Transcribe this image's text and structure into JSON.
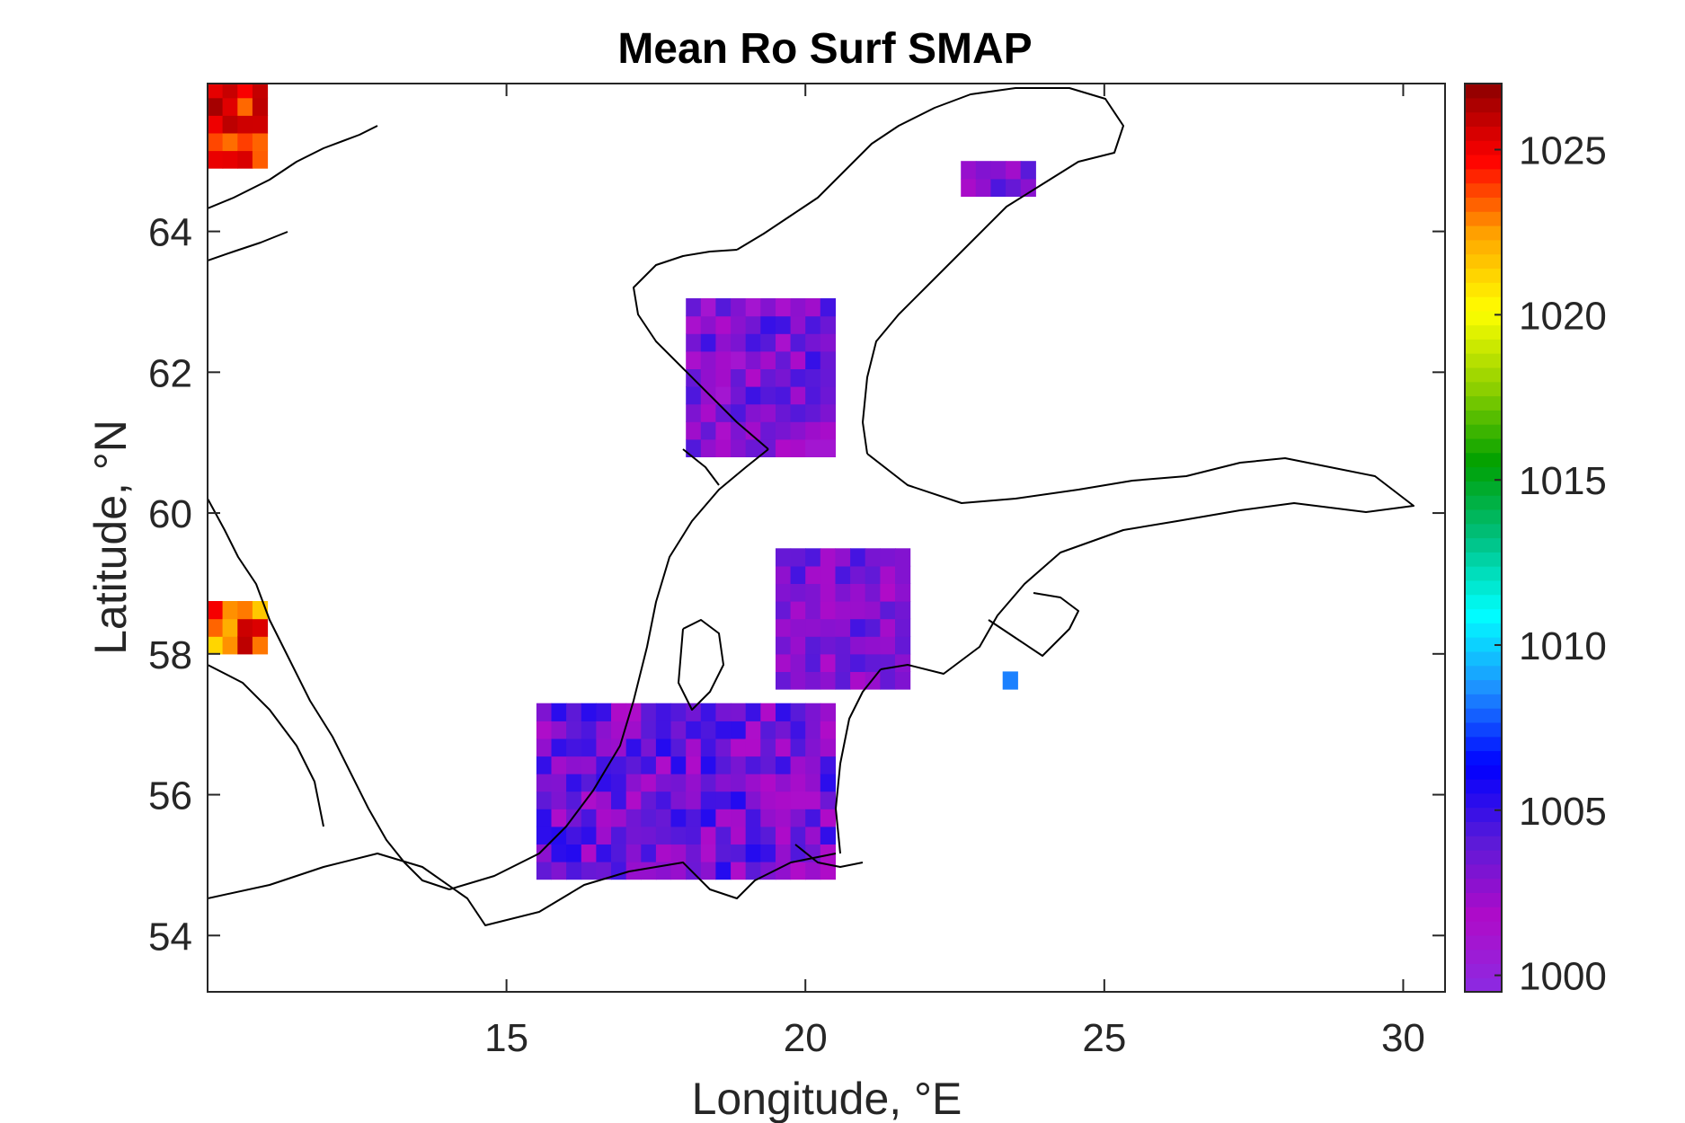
{
  "chart_data": {
    "type": "heatmap",
    "title": "Mean Ro Surf SMAP",
    "xlabel": "Longitude, °E",
    "ylabel": "Latitude, °N",
    "xlim": [
      10,
      30.7
    ],
    "ylim": [
      53.2,
      66.1
    ],
    "xticks": [
      15,
      20,
      25,
      30
    ],
    "xticklabels": [
      "15",
      "20",
      "25",
      "30"
    ],
    "yticks": [
      54,
      56,
      58,
      60,
      62,
      64
    ],
    "yticklabels": [
      "54",
      "56",
      "58",
      "60",
      "62",
      "64"
    ],
    "colorbar": {
      "clim": [
        999.5,
        1027.0
      ],
      "ticks": [
        1000,
        1005,
        1010,
        1015,
        1020,
        1025
      ],
      "ticklabels": [
        "1000",
        "1005",
        "1010",
        "1015",
        "1020",
        "1025"
      ],
      "colormap": [
        "#8a2be2",
        "#b00bc8",
        "#5a1ad8",
        "#0000ff",
        "#1e90ff",
        "#00ffff",
        "#00c080",
        "#00a000",
        "#90d000",
        "#ffff00",
        "#ffa500",
        "#ff0000",
        "#8b0000"
      ]
    },
    "grid": false,
    "cell_size_deg": [
      0.25,
      0.25
    ],
    "clusters": [
      {
        "name": "northwest-corner",
        "lon": [
          10.0,
          11.0
        ],
        "lat": [
          64.9,
          66.1
        ],
        "mean": 1024.5,
        "spread": 2.0
      },
      {
        "name": "skagerrak",
        "lon": [
          10.0,
          10.8
        ],
        "lat": [
          58.0,
          58.7
        ],
        "mean": 1023.5,
        "spread": 3.0
      },
      {
        "name": "bothnian-bay",
        "lon": [
          22.6,
          23.7
        ],
        "lat": [
          64.5,
          65.0
        ],
        "mean": 1003.0,
        "spread": 1.5
      },
      {
        "name": "bothnian-sea",
        "lon": [
          18.0,
          20.5
        ],
        "lat": [
          60.8,
          62.9
        ],
        "mean": 1003.0,
        "spread": 2.0
      },
      {
        "name": "baltic-proper-north",
        "lon": [
          19.5,
          21.7
        ],
        "lat": [
          57.5,
          59.4
        ],
        "mean": 1003.2,
        "spread": 1.5
      },
      {
        "name": "baltic-proper-south",
        "lon": [
          15.5,
          20.5
        ],
        "lat": [
          54.8,
          57.3
        ],
        "mean": 1003.5,
        "spread": 2.0
      },
      {
        "name": "gulf-of-riga",
        "lon": [
          23.3,
          23.5
        ],
        "lat": [
          57.5,
          57.75
        ],
        "mean": 1008.0,
        "spread": 0.5
      }
    ]
  }
}
